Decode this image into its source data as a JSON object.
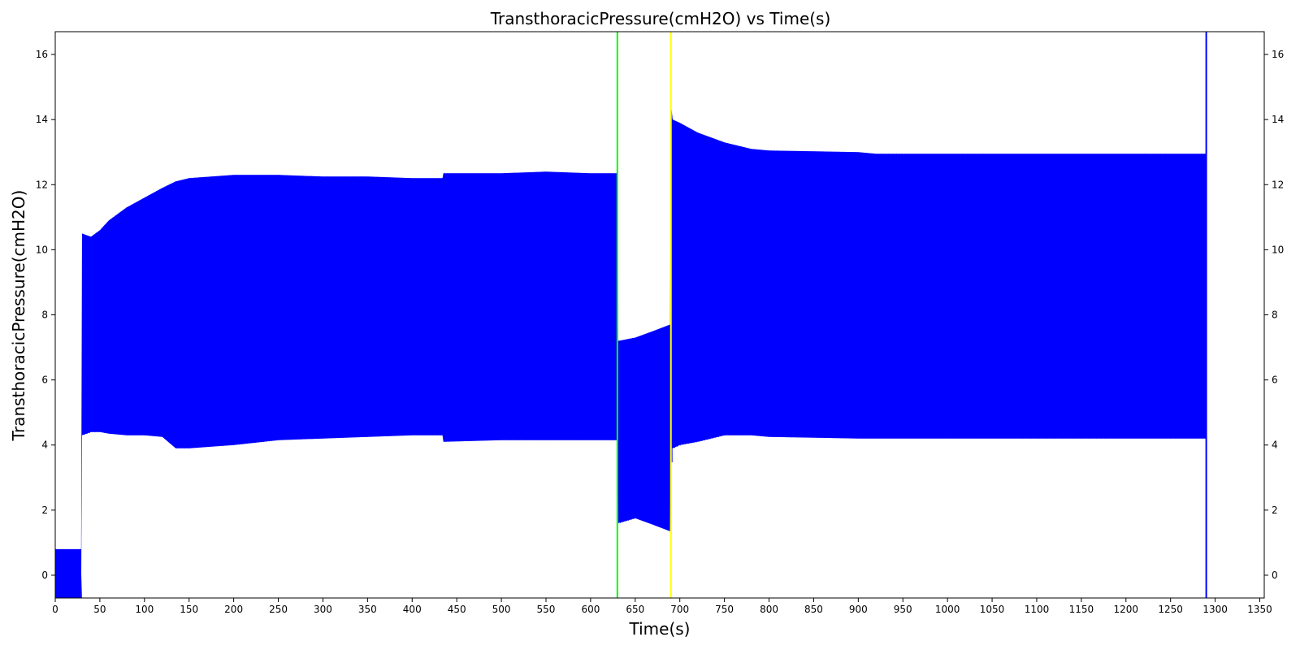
{
  "chart_data": {
    "type": "line",
    "title": "TransthoracicPressure(cmH2O) vs Time(s)",
    "xlabel": "Time(s)",
    "ylabel": "TransthoracicPressure(cmH2O)",
    "xlim": [
      0,
      1355
    ],
    "ylim": [
      -0.7,
      16.7
    ],
    "x_ticks": [
      0,
      50,
      100,
      150,
      200,
      250,
      300,
      350,
      400,
      450,
      500,
      550,
      600,
      650,
      700,
      750,
      800,
      850,
      900,
      950,
      1000,
      1050,
      1100,
      1150,
      1200,
      1250,
      1300,
      1350
    ],
    "y_ticks": [
      0,
      2,
      4,
      6,
      8,
      10,
      12,
      14,
      16
    ],
    "grid": false,
    "series": [
      {
        "color": "#0000ff",
        "style": "dense oscillating envelope (upper and lower bounds)",
        "x": [
          0,
          29,
          30,
          40,
          50,
          60,
          80,
          100,
          120,
          135,
          150,
          175,
          200,
          250,
          300,
          350,
          400,
          434,
          435,
          500,
          550,
          600,
          630,
          631,
          650,
          670,
          689,
          690,
          692,
          700,
          720,
          750,
          780,
          800,
          900,
          920,
          1000,
          1100,
          1200,
          1290
        ],
        "upper": [
          0.8,
          0.8,
          10.5,
          10.4,
          10.6,
          10.9,
          11.3,
          11.6,
          11.9,
          12.1,
          12.2,
          12.25,
          12.3,
          12.3,
          12.25,
          12.25,
          12.2,
          12.2,
          12.35,
          12.35,
          12.4,
          12.35,
          12.35,
          7.2,
          7.3,
          7.5,
          7.7,
          14.5,
          14.0,
          13.9,
          13.6,
          13.3,
          13.1,
          13.05,
          13.0,
          12.95,
          12.95,
          12.95,
          12.95,
          12.95
        ],
        "lower": [
          -0.7,
          -0.7,
          4.3,
          4.4,
          4.4,
          4.35,
          4.3,
          4.3,
          4.25,
          3.9,
          3.9,
          3.95,
          4.0,
          4.15,
          4.2,
          4.25,
          4.3,
          4.3,
          4.1,
          4.15,
          4.15,
          4.15,
          4.15,
          1.6,
          1.75,
          1.55,
          1.35,
          4.0,
          3.9,
          4.0,
          4.1,
          4.3,
          4.3,
          4.25,
          4.2,
          4.2,
          4.2,
          4.2,
          4.2,
          4.2
        ]
      }
    ],
    "vlines": [
      {
        "x": 630,
        "color": "#00ff00"
      },
      {
        "x": 690,
        "color": "#ffff00"
      },
      {
        "x": 1290,
        "color": "#0000ff"
      }
    ]
  }
}
